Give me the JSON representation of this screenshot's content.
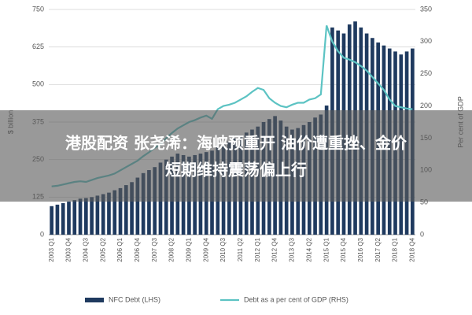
{
  "chart_data": {
    "type": "bar-line",
    "ylabel": "$ billion",
    "y2label": "Per cent of GDP",
    "categories": [
      "2003 Q1",
      null,
      null,
      "2003 Q4",
      null,
      null,
      "2004 Q3",
      null,
      null,
      "2005 Q2",
      null,
      null,
      "2006 Q1",
      null,
      null,
      "2006 Q4",
      null,
      null,
      "2007 Q3",
      null,
      null,
      "2008 Q2",
      null,
      null,
      "2009 Q1",
      null,
      null,
      "2009 Q4",
      null,
      null,
      "2010 Q3",
      null,
      null,
      "2011 Q2",
      null,
      null,
      "2012 Q1",
      null,
      null,
      "2012 Q4",
      null,
      null,
      "2013 Q3",
      null,
      null,
      "2014 Q2",
      null,
      null,
      "2015 Q1",
      null,
      null,
      "2015 Q4",
      null,
      null,
      "2016 Q3",
      null,
      null,
      "2017 Q2",
      null,
      null,
      "2018 Q1",
      null,
      null,
      "2018 Q4"
    ],
    "series": [
      {
        "name": "NFC Debt (LHS)",
        "type": "bar",
        "color": "#1f3a5f",
        "values": [
          95,
          100,
          105,
          110,
          115,
          120,
          122,
          125,
          130,
          135,
          140,
          148,
          155,
          165,
          175,
          190,
          205,
          215,
          225,
          240,
          250,
          260,
          270,
          265,
          260,
          265,
          270,
          275,
          280,
          290,
          300,
          310,
          320,
          330,
          340,
          350,
          360,
          375,
          385,
          395,
          380,
          360,
          350,
          355,
          365,
          375,
          390,
          400,
          430,
          690,
          680,
          670,
          700,
          710,
          690,
          670,
          655,
          640,
          630,
          620,
          610,
          600,
          610,
          620
        ]
      },
      {
        "name": "Debt as a per cent of GDP (RHS)",
        "type": "line",
        "axis": "y2",
        "color": "#5cc3c3",
        "values": [
          75,
          76,
          78,
          80,
          82,
          83,
          82,
          85,
          88,
          90,
          92,
          95,
          100,
          105,
          110,
          115,
          122,
          128,
          135,
          140,
          150,
          158,
          165,
          170,
          175,
          178,
          182,
          185,
          180,
          195,
          200,
          202,
          205,
          210,
          215,
          222,
          228,
          225,
          212,
          205,
          200,
          198,
          202,
          205,
          205,
          210,
          212,
          218,
          325,
          300,
          285,
          275,
          272,
          268,
          262,
          255,
          245,
          235,
          225,
          210,
          200,
          198,
          196,
          195
        ]
      }
    ],
    "ylim": [
      0,
      750
    ],
    "yticks": [
      0,
      125,
      250,
      375,
      500,
      625,
      750
    ],
    "y2lim": [
      0,
      350
    ],
    "y2ticks": [
      0,
      50,
      100,
      150,
      200,
      250,
      300,
      350
    ],
    "grid": true,
    "annotations": [
      "港股配资 张尧浠：海峡预重开 油价遭重挫、金价",
      "短期维持震荡偏上行"
    ]
  }
}
